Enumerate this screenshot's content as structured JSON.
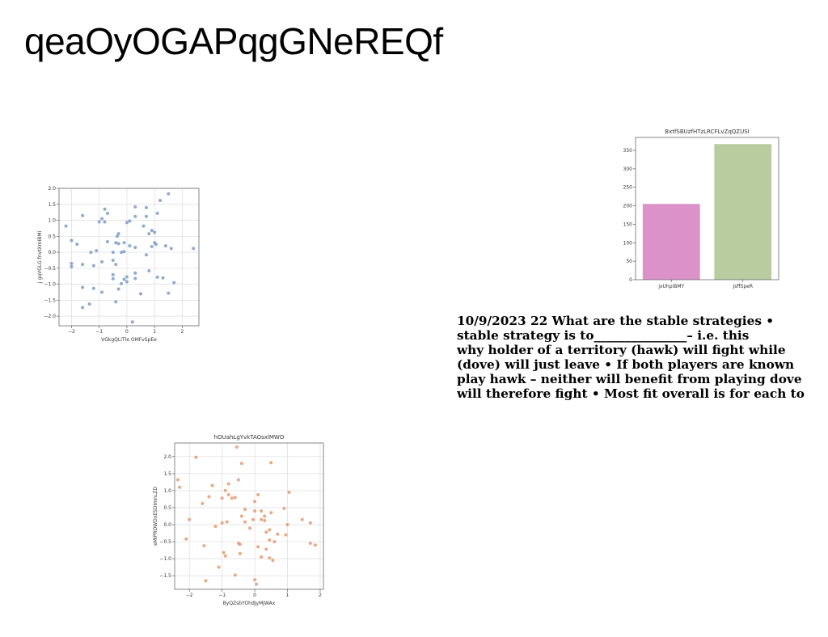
{
  "page": {
    "title": "qeaOyOGAPqgGNeREQf"
  },
  "notes": {
    "lines": [
      "10/9/2023 22 What are the stable strategies •",
      "stable strategy is to_______________– i.e. this",
      "why holder of a territory (hawk) will fight while",
      "(dove) will just leave • If both players are known",
      "play hawk – neither will benefit from playing dove",
      "will therefore fight • Most fit overall is for each to"
    ]
  },
  "chart_data": [
    {
      "type": "scatter",
      "title": "",
      "xlabel": "VGkgQLiTle OMFvSpEe",
      "ylabel": "J gqVGLG fnvtXmIBMi",
      "xlim": [
        -2.45,
        2.6
      ],
      "ylim": [
        -2.3,
        2.0
      ],
      "xticks": [
        -2,
        -1,
        0,
        1,
        2
      ],
      "yticks": [
        -2.0,
        -1.5,
        -1.0,
        -0.5,
        0.0,
        0.5,
        1.0,
        1.5,
        2.0
      ],
      "grid": true,
      "color": "#7b9cc7",
      "points": [
        [
          -2.2,
          0.82
        ],
        [
          -2.0,
          0.37
        ],
        [
          -2.0,
          -0.35
        ],
        [
          -2.0,
          -0.45
        ],
        [
          -1.8,
          0.25
        ],
        [
          -1.6,
          1.15
        ],
        [
          -1.6,
          -0.38
        ],
        [
          -1.6,
          -1.1
        ],
        [
          -1.6,
          -1.73
        ],
        [
          -1.35,
          -1.62
        ],
        [
          -1.3,
          0.0
        ],
        [
          -1.2,
          -0.42
        ],
        [
          -1.2,
          -1.13
        ],
        [
          -1.1,
          0.05
        ],
        [
          -1.0,
          0.95
        ],
        [
          -0.9,
          1.05
        ],
        [
          -0.9,
          -0.3
        ],
        [
          -0.9,
          -1.25
        ],
        [
          -0.8,
          1.35
        ],
        [
          -0.8,
          0.95
        ],
        [
          -0.7,
          1.22
        ],
        [
          -0.7,
          0.33
        ],
        [
          -0.5,
          0.0
        ],
        [
          -0.5,
          -0.25
        ],
        [
          -0.5,
          -0.7
        ],
        [
          -0.5,
          -0.83
        ],
        [
          -0.4,
          0.3
        ],
        [
          -0.4,
          -0.38
        ],
        [
          -0.4,
          -1.55
        ],
        [
          -0.35,
          0.5
        ],
        [
          -0.3,
          0.58
        ],
        [
          -0.3,
          0.27
        ],
        [
          -0.3,
          -1.15
        ],
        [
          -0.2,
          0.0
        ],
        [
          -0.2,
          -0.98
        ],
        [
          -0.1,
          0.3
        ],
        [
          -0.1,
          0.02
        ],
        [
          -0.1,
          -0.85
        ],
        [
          0.0,
          0.93
        ],
        [
          0.0,
          -0.92
        ],
        [
          0.0,
          -0.77
        ],
        [
          0.1,
          0.98
        ],
        [
          0.1,
          0.2
        ],
        [
          0.2,
          -2.18
        ],
        [
          0.3,
          1.42
        ],
        [
          0.3,
          1.12
        ],
        [
          0.3,
          0.15
        ],
        [
          0.3,
          -0.65
        ],
        [
          0.3,
          -0.82
        ],
        [
          0.5,
          -1.3
        ],
        [
          0.6,
          0.82
        ],
        [
          0.7,
          1.4
        ],
        [
          0.7,
          1.12
        ],
        [
          0.7,
          -0.08
        ],
        [
          0.8,
          0.58
        ],
        [
          0.8,
          -0.58
        ],
        [
          0.9,
          0.68
        ],
        [
          0.9,
          0.18
        ],
        [
          1.0,
          0.62
        ],
        [
          1.0,
          0.3
        ],
        [
          1.05,
          0.25
        ],
        [
          1.1,
          1.22
        ],
        [
          1.1,
          -0.78
        ],
        [
          1.2,
          1.62
        ],
        [
          1.3,
          -0.8
        ],
        [
          1.4,
          0.2
        ],
        [
          1.5,
          1.83
        ],
        [
          1.5,
          -1.28
        ],
        [
          1.6,
          0.12
        ],
        [
          1.7,
          -0.95
        ],
        [
          2.4,
          0.12
        ]
      ]
    },
    {
      "type": "bar",
      "title": "BxtfSBUzfHTzLRCFLvZqQZUSI",
      "xlabel": "",
      "ylabel": "",
      "categories": [
        "jxUhpiBMY",
        "JsffSpeR"
      ],
      "values": [
        205,
        367
      ],
      "colors": [
        "#da92c8",
        "#b8cca0"
      ],
      "ylim": [
        0,
        385
      ],
      "yticks": [
        0,
        50,
        100,
        150,
        200,
        250,
        300,
        350
      ],
      "grid": false
    },
    {
      "type": "scatter",
      "title": "hOUahLgYvkTAOsxlMWO",
      "xlabel": "ByQZsbYOhdJyMJWAx",
      "ylabel": "eMIPROWDxESDImnLZD",
      "xlim": [
        -2.45,
        2.1
      ],
      "ylim": [
        -1.9,
        2.4
      ],
      "xticks": [
        -2,
        -1,
        0,
        1,
        2
      ],
      "yticks": [
        -1.5,
        -1.0,
        -0.5,
        0.0,
        0.5,
        1.0,
        1.5,
        2.0
      ],
      "grid": true,
      "color": "#e69a6f",
      "points": [
        [
          -2.35,
          1.32
        ],
        [
          -2.3,
          1.1
        ],
        [
          -2.1,
          -0.42
        ],
        [
          -2.0,
          0.15
        ],
        [
          -1.8,
          1.98
        ],
        [
          -1.6,
          0.62
        ],
        [
          -1.55,
          -0.62
        ],
        [
          -1.5,
          -1.65
        ],
        [
          -1.4,
          0.82
        ],
        [
          -1.3,
          1.15
        ],
        [
          -1.2,
          -0.05
        ],
        [
          -1.1,
          -1.25
        ],
        [
          -1.0,
          0.78
        ],
        [
          -1.0,
          0.05
        ],
        [
          -0.95,
          -0.82
        ],
        [
          -0.9,
          -0.92
        ],
        [
          -0.9,
          1.0
        ],
        [
          -0.85,
          0.08
        ],
        [
          -0.8,
          1.2
        ],
        [
          -0.8,
          0.88
        ],
        [
          -0.7,
          0.78
        ],
        [
          -0.6,
          -1.48
        ],
        [
          -0.6,
          0.8
        ],
        [
          -0.55,
          2.28
        ],
        [
          -0.5,
          1.32
        ],
        [
          -0.5,
          -0.55
        ],
        [
          -0.45,
          -0.58
        ],
        [
          -0.45,
          -0.85
        ],
        [
          -0.4,
          1.8
        ],
        [
          -0.4,
          0.25
        ],
        [
          -0.3,
          0.45
        ],
        [
          -0.3,
          0.08
        ],
        [
          -0.15,
          -0.1
        ],
        [
          -0.05,
          0.15
        ],
        [
          0.0,
          0.68
        ],
        [
          0.0,
          0.4
        ],
        [
          0.0,
          -1.62
        ],
        [
          0.1,
          0.88
        ],
        [
          0.1,
          -0.65
        ],
        [
          0.2,
          -0.95
        ],
        [
          0.2,
          0.15
        ],
        [
          0.2,
          0.4
        ],
        [
          0.3,
          0.12
        ],
        [
          0.3,
          0.25
        ],
        [
          0.35,
          -0.72
        ],
        [
          0.35,
          -0.22
        ],
        [
          0.45,
          -0.98
        ],
        [
          0.45,
          -0.45
        ],
        [
          0.45,
          -0.15
        ],
        [
          0.5,
          1.82
        ],
        [
          0.5,
          0.35
        ],
        [
          0.55,
          -1.05
        ],
        [
          0.6,
          -0.5
        ],
        [
          0.7,
          -0.28
        ],
        [
          0.9,
          0.48
        ],
        [
          0.95,
          -0.3
        ],
        [
          1.0,
          0.0
        ],
        [
          1.05,
          0.95
        ],
        [
          1.45,
          0.15
        ],
        [
          1.7,
          0.05
        ],
        [
          1.7,
          -0.55
        ],
        [
          1.85,
          -0.6
        ],
        [
          0.05,
          -1.75
        ]
      ]
    }
  ]
}
